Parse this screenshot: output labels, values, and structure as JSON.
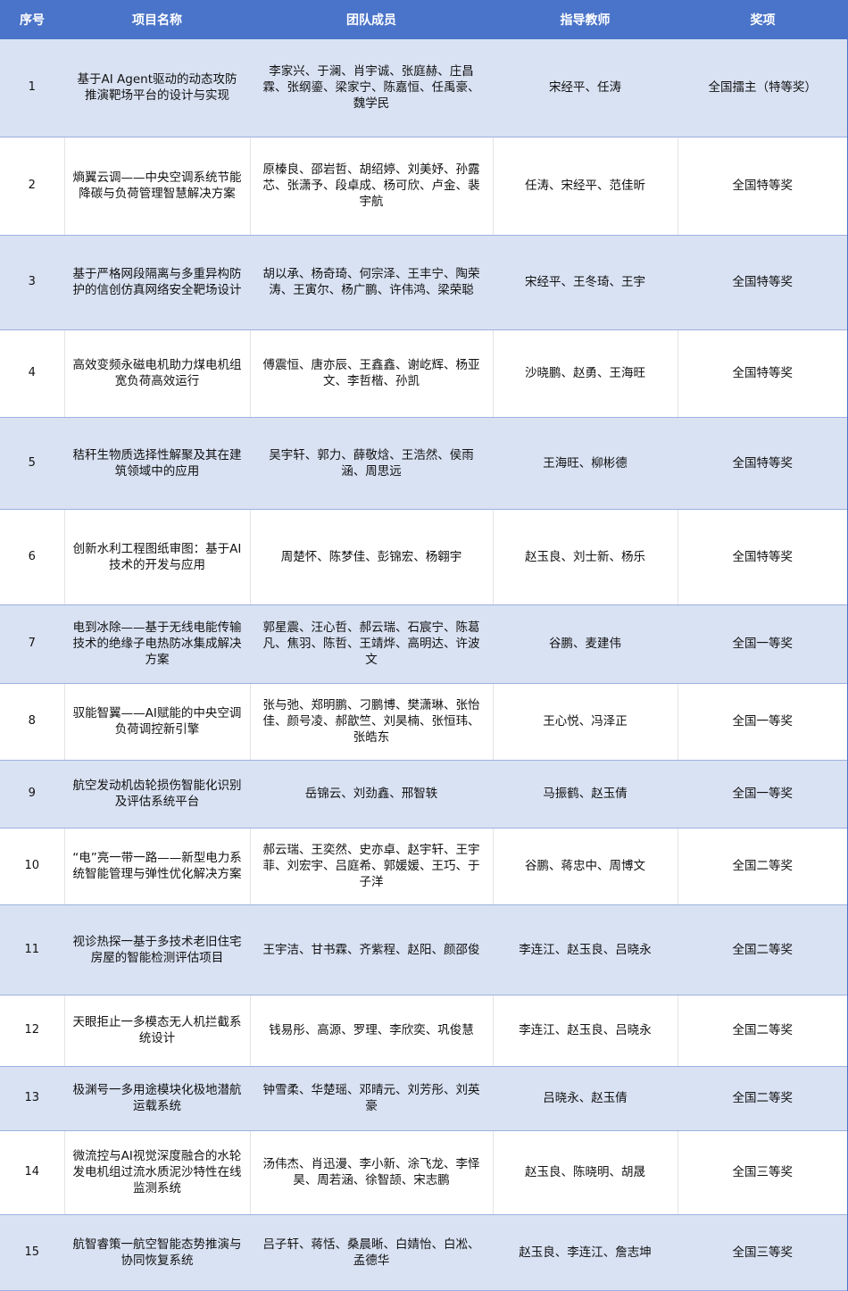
{
  "colors": {
    "header_bg": "#4a74c9",
    "odd_row_bg": "#d9e2f3",
    "even_row_bg": "#ffffff"
  },
  "headers": [
    "序号",
    "项目名称",
    "团队成员",
    "指导教师",
    "奖项"
  ],
  "rows": [
    [
      "1",
      "基于AI Agent驱动的动态攻防推演靶场平台的设计与实现",
      "李家兴、于澜、肖宇诚、张庭赫、庄昌霖、张纲鎏、梁家宁、陈嘉恒、任禹豪、魏学民",
      "宋经平、任涛",
      "全国擂主（特等奖）"
    ],
    [
      "2",
      "熵翼云调——中央空调系统节能降碳与负荷管理智慧解决方案",
      "原榛良、邵岩哲、胡绍婷、刘美妤、孙露芯、张潇予、段卓成、杨可欣、卢金、裴宇航",
      "任涛、宋经平、范佳昕",
      "全国特等奖"
    ],
    [
      "3",
      "基于严格网段隔离与多重异构防护的信创仿真网络安全靶场设计",
      "胡以承、杨奇琦、何宗泽、王丰宁、陶荣涛、王寅尔、杨广鹏、许伟鸿、梁荣聪",
      "宋经平、王冬琦、王宇",
      "全国特等奖"
    ],
    [
      "4",
      "高效变频永磁电机助力煤电机组宽负荷高效运行",
      "傅震恒、唐亦辰、王鑫鑫、谢屹辉、杨亚文、李哲楷、孙凯",
      "沙晓鹏、赵勇、王海旺",
      "全国特等奖"
    ],
    [
      "5",
      "秸秆生物质选择性解聚及其在建筑领域中的应用",
      "吴宇轩、郭力、薛敬焓、王浩然、侯雨涵、周思远",
      "王海旺、柳彬德",
      "全国特等奖"
    ],
    [
      "6",
      "创新水利工程图纸审图：基于AI技术的开发与应用",
      "周楚怀、陈梦佳、彭锦宏、杨翱宇",
      "赵玉良、刘士新、杨乐",
      "全国特等奖"
    ],
    [
      "7",
      "电到冰除——基于无线电能传输技术的绝缘子电热防冰集成解决方案",
      "郭星震、汪心哲、郝云瑞、石宸宁、陈葛凡、焦羽、陈哲、王靖烨、高明达、许波文",
      "谷鹏、麦建伟",
      "全国一等奖"
    ],
    [
      "8",
      "驭能智翼——AI赋能的中央空调负荷调控新引擎",
      "张与弛、郑明鹏、刁鹏博、樊潇琳、张怡佳、颜号凌、郝歆竺、刘昊楠、张恒玮、张皓东",
      "王心悦、冯泽正",
      "全国一等奖"
    ],
    [
      "9",
      "航空发动机齿轮损伤智能化识别及评估系统平台",
      "岳锦云、刘劲鑫、邢智轶",
      "马振鹤、赵玉倩",
      "全国一等奖"
    ],
    [
      "10",
      "“电”亮一带一路——新型电力系统智能管理与弹性优化解决方案",
      "郝云瑞、王奕然、史亦卓、赵宇轩、王宇菲、刘宏宇、吕庭希、郭媛媛、王巧、于子洋",
      "谷鹏、蒋忠中、周博文",
      "全国二等奖"
    ],
    [
      "11",
      "视诊热探一基于多技术老旧住宅房屋的智能检测评估项目",
      "王宇洁、甘书霖、齐紫程、赵阳、颜邵俊",
      "李连江、赵玉良、吕晓永",
      "全国二等奖"
    ],
    [
      "12",
      "天眼拒止一多模态无人机拦截系统设计",
      "钱易彤、高源、罗理、李欣奕、巩俊慧",
      "李连江、赵玉良、吕晓永",
      "全国二等奖"
    ],
    [
      "13",
      "极渊号一多用途模块化极地潜航运载系统",
      "钟雪柔、华楚瑶、邓晴元、刘芳彤、刘英豪",
      "吕晓永、赵玉倩",
      "全国二等奖"
    ],
    [
      "14",
      "微流控与AI视觉深度融合的水轮发电机组过流水质泥沙特性在线监测系统",
      "汤伟杰、肖迅漫、李小新、涂飞龙、李怿昊、周若涵、徐智颉、宋志鹏",
      "赵玉良、陈晓明、胡晟",
      "全国三等奖"
    ],
    [
      "15",
      "航智睿策一航空智能态势推演与协同恢复系统",
      "吕子轩、蒋恬、桑晨晰、白婧怡、白凇、孟德华",
      "赵玉良、李连江、詹志坤",
      "全国三等奖"
    ]
  ]
}
